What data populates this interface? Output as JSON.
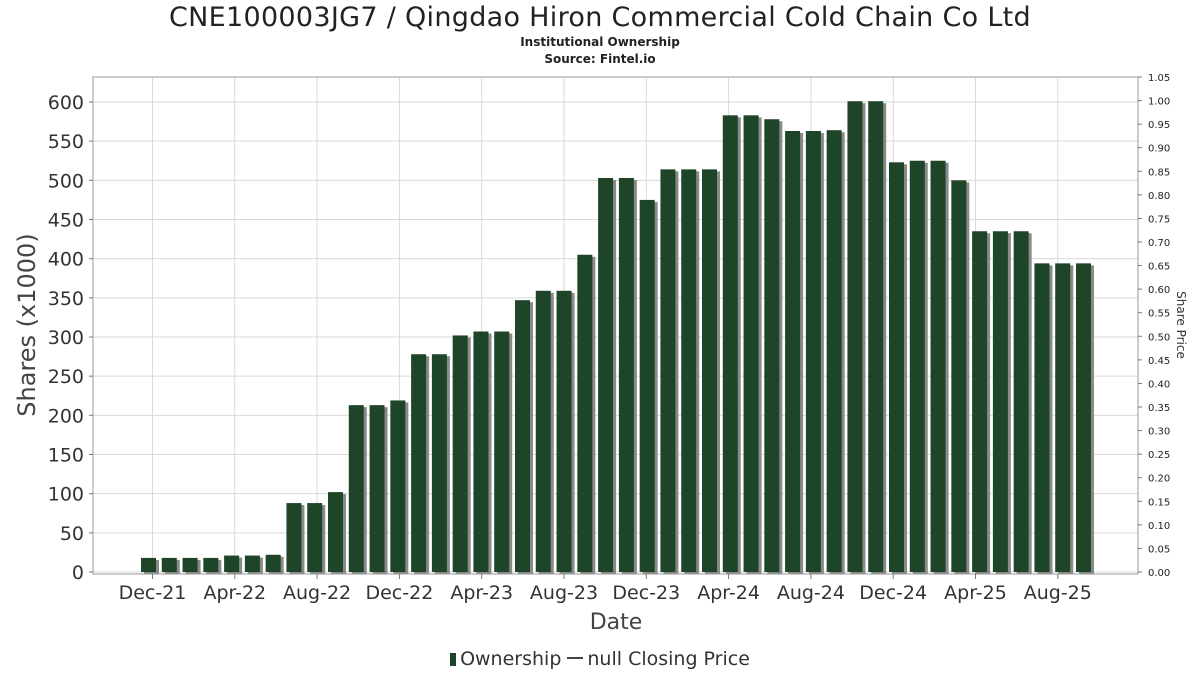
{
  "title": "CNE100003JG7 / Qingdao Hiron Commercial Cold Chain Co Ltd",
  "subtitle": "Institutional Ownership",
  "source": "Source: Fintel.io",
  "legend": {
    "series1": "Ownership",
    "series2": "null Closing Price"
  },
  "colors": {
    "bar": "#1e4528",
    "shadow": "#8a8a8a",
    "grid": "#d9d9d9"
  },
  "chart_data": {
    "type": "bar",
    "title": "CNE100003JG7 / Qingdao Hiron Commercial Cold Chain Co Ltd",
    "xlabel": "Date",
    "ylabel": "Shares (x1000)",
    "y2label": "Share Price",
    "ylim": [
      0,
      620
    ],
    "y2lim": [
      0,
      1.05
    ],
    "yticks": [
      0,
      50,
      100,
      150,
      200,
      250,
      300,
      350,
      400,
      450,
      500,
      550,
      600
    ],
    "y2ticks": [
      "0.00",
      "0.05",
      "0.10",
      "0.15",
      "0.20",
      "0.25",
      "0.30",
      "0.35",
      "0.40",
      "0.45",
      "0.50",
      "0.55",
      "0.60",
      "0.65",
      "0.70",
      "0.75",
      "0.80",
      "0.85",
      "0.90",
      "0.95",
      "1.00",
      "1.05"
    ],
    "xticks": [
      "Dec-21",
      "Apr-22",
      "Aug-22",
      "Dec-22",
      "Apr-23",
      "Aug-23",
      "Dec-23",
      "Apr-24",
      "Aug-24",
      "Dec-24",
      "Apr-25",
      "Aug-25"
    ],
    "grid": true,
    "legend_position": "bottom",
    "series": [
      {
        "name": "Ownership",
        "values": [
          18,
          18,
          18,
          18,
          21,
          21,
          22,
          88,
          88,
          102,
          213,
          213,
          219,
          278,
          278,
          302,
          307,
          307,
          347,
          359,
          359,
          405,
          503,
          503,
          475,
          514,
          514,
          514,
          583,
          583,
          578,
          563,
          563,
          564,
          601,
          601,
          523,
          525,
          525,
          500,
          435,
          435,
          435,
          394,
          394,
          394
        ]
      }
    ]
  }
}
